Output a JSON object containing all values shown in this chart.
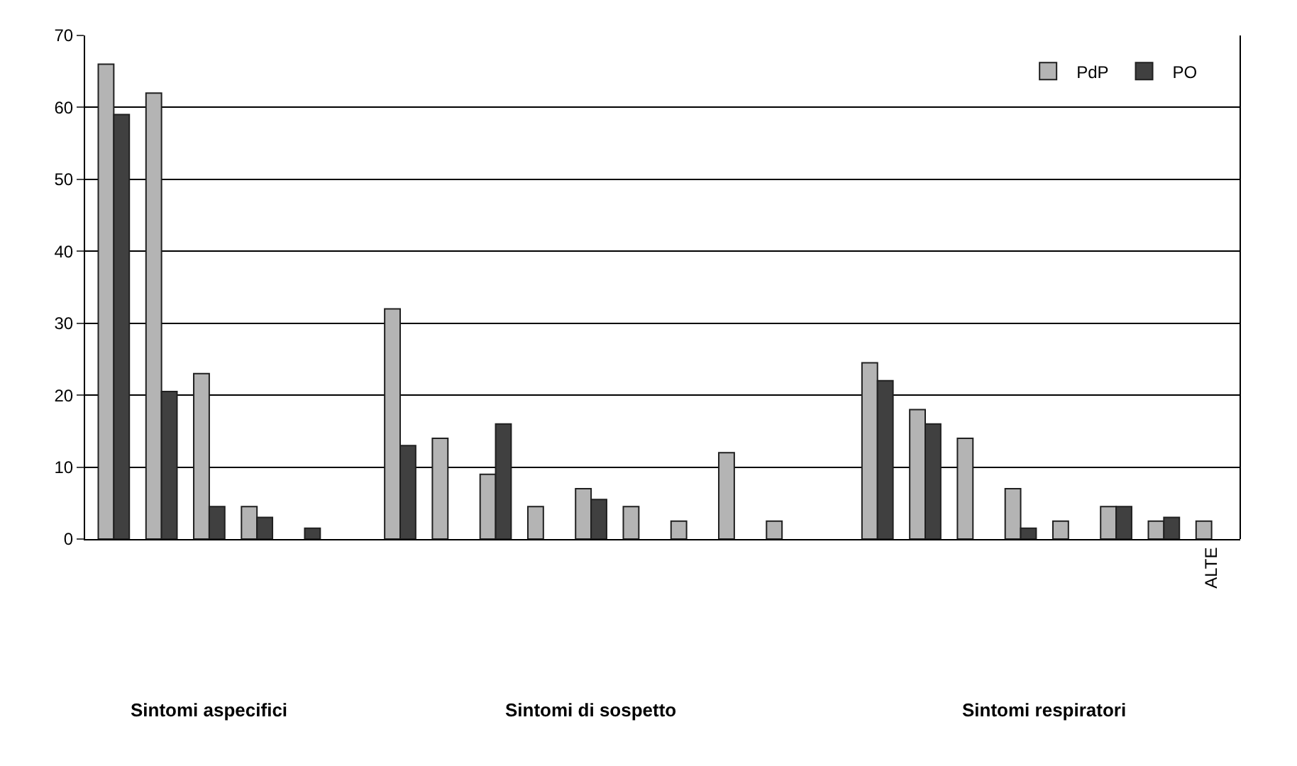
{
  "chart_data": {
    "type": "bar",
    "categories": [
      null,
      null,
      null,
      null,
      null,
      null,
      null,
      null,
      null,
      null,
      null,
      null,
      null,
      null,
      null,
      null,
      null,
      null,
      null,
      null,
      null,
      null,
      null,
      "ALTE"
    ],
    "series": [
      {
        "name": "PdP",
        "color": "#b4b4b4",
        "values": [
          66,
          62,
          23,
          4.5,
          null,
          null,
          32,
          14,
          9,
          4.5,
          7,
          4.5,
          2.5,
          12,
          2.5,
          null,
          24.5,
          18,
          14,
          7,
          2.5,
          4.5,
          2.5,
          2.5
        ]
      },
      {
        "name": "PO",
        "color": "#404040",
        "values": [
          59,
          20.5,
          4.5,
          3,
          1.5,
          null,
          13,
          null,
          16,
          null,
          5.5,
          null,
          null,
          null,
          null,
          null,
          22,
          16,
          null,
          1.5,
          null,
          4.5,
          3,
          null
        ]
      }
    ],
    "annotations": [
      "Sintomi aspecifici",
      "Sintomi di sospetto",
      "Sintomi respiratori"
    ],
    "ylim": [
      0,
      70
    ],
    "yticks": [
      0,
      10,
      20,
      30,
      40,
      50,
      60,
      70
    ],
    "grid": "y",
    "legend": "top right"
  }
}
